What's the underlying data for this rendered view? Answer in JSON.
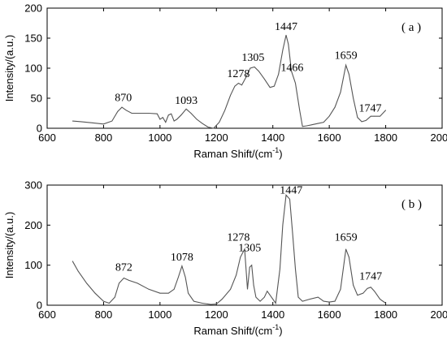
{
  "chart_data": [
    {
      "type": "line",
      "panel_label": "( a )",
      "xlabel": "Raman Shift/(cm",
      "xlabel_sup": "-1",
      "xlabel_close": ")",
      "ylabel": "Intensity/(a.u.)",
      "xlim": [
        600,
        2000
      ],
      "ylim": [
        0,
        200
      ],
      "xticks": [
        600,
        800,
        1000,
        1200,
        1400,
        1600,
        1800,
        2000
      ],
      "yticks": [
        0,
        50,
        100,
        150,
        200
      ],
      "grid": false,
      "annotations": [
        {
          "text": "870",
          "x": 870,
          "y": 40
        },
        {
          "text": "1093",
          "x": 1093,
          "y": 35
        },
        {
          "text": "1278",
          "x": 1278,
          "y": 80
        },
        {
          "text": "1305",
          "x": 1330,
          "y": 107
        },
        {
          "text": "1447",
          "x": 1447,
          "y": 158
        },
        {
          "text": "1466",
          "x": 1468,
          "y": 90
        },
        {
          "text": "1659",
          "x": 1659,
          "y": 110
        },
        {
          "text": "1747",
          "x": 1745,
          "y": 22
        }
      ],
      "series": [
        {
          "x": [
            690,
            720,
            760,
            800,
            830,
            850,
            865,
            880,
            900,
            930,
            960,
            990,
            1000,
            1010,
            1020,
            1030,
            1040,
            1050,
            1060,
            1075,
            1093,
            1110,
            1130,
            1150,
            1170,
            1190,
            1210,
            1230,
            1250,
            1265,
            1278,
            1290,
            1305,
            1320,
            1335,
            1350,
            1370,
            1390,
            1405,
            1420,
            1435,
            1447,
            1455,
            1466,
            1480,
            1495,
            1505,
            1520,
            1540,
            1560,
            1580,
            1600,
            1620,
            1640,
            1659,
            1670,
            1685,
            1700,
            1715,
            1730,
            1747,
            1760,
            1780,
            1800
          ],
          "y": [
            12,
            11,
            9,
            7,
            12,
            28,
            35,
            30,
            25,
            25,
            25,
            24,
            15,
            18,
            10,
            22,
            24,
            12,
            15,
            22,
            32,
            25,
            15,
            8,
            2,
            0,
            10,
            30,
            55,
            70,
            75,
            72,
            85,
            100,
            102,
            95,
            82,
            68,
            70,
            90,
            130,
            155,
            140,
            95,
            75,
            30,
            3,
            4,
            6,
            8,
            10,
            20,
            35,
            60,
            105,
            90,
            50,
            18,
            11,
            13,
            20,
            20,
            20,
            30
          ]
        }
      ]
    },
    {
      "type": "line",
      "panel_label": "( b )",
      "xlabel": "Raman Shift/(cm",
      "xlabel_sup": "-1",
      "xlabel_close": ")",
      "ylabel": "Intensity/(a.u.)",
      "xlim": [
        600,
        2000
      ],
      "ylim": [
        0,
        300
      ],
      "xticks": [
        600,
        800,
        1000,
        1200,
        1400,
        1600,
        1800,
        2000
      ],
      "yticks": [
        0,
        100,
        200,
        300
      ],
      "grid": false,
      "annotations": [
        {
          "text": "872",
          "x": 872,
          "y": 78
        },
        {
          "text": "1078",
          "x": 1078,
          "y": 103
        },
        {
          "text": "1278",
          "x": 1278,
          "y": 153
        },
        {
          "text": "1305",
          "x": 1318,
          "y": 127
        },
        {
          "text": "1447",
          "x": 1465,
          "y": 271
        },
        {
          "text": "1659",
          "x": 1659,
          "y": 153
        },
        {
          "text": "1747",
          "x": 1747,
          "y": 56
        }
      ],
      "series": [
        {
          "x": [
            690,
            710,
            740,
            770,
            800,
            820,
            840,
            855,
            872,
            890,
            920,
            960,
            1000,
            1030,
            1050,
            1065,
            1078,
            1090,
            1100,
            1120,
            1150,
            1180,
            1200,
            1220,
            1250,
            1270,
            1285,
            1300,
            1310,
            1318,
            1325,
            1332,
            1340,
            1355,
            1370,
            1380,
            1395,
            1410,
            1425,
            1435,
            1447,
            1460,
            1470,
            1480,
            1490,
            1505,
            1530,
            1560,
            1580,
            1600,
            1620,
            1640,
            1659,
            1670,
            1685,
            1700,
            1720,
            1735,
            1747,
            1760,
            1780,
            1800
          ],
          "y": [
            110,
            85,
            55,
            30,
            10,
            5,
            20,
            55,
            68,
            62,
            55,
            40,
            30,
            30,
            40,
            70,
            98,
            70,
            30,
            10,
            5,
            2,
            3,
            15,
            40,
            75,
            120,
            140,
            40,
            95,
            100,
            50,
            20,
            10,
            20,
            35,
            20,
            5,
            90,
            200,
            275,
            265,
            180,
            90,
            20,
            10,
            15,
            20,
            10,
            8,
            10,
            40,
            140,
            120,
            50,
            25,
            30,
            42,
            45,
            35,
            15,
            5
          ]
        }
      ]
    }
  ]
}
